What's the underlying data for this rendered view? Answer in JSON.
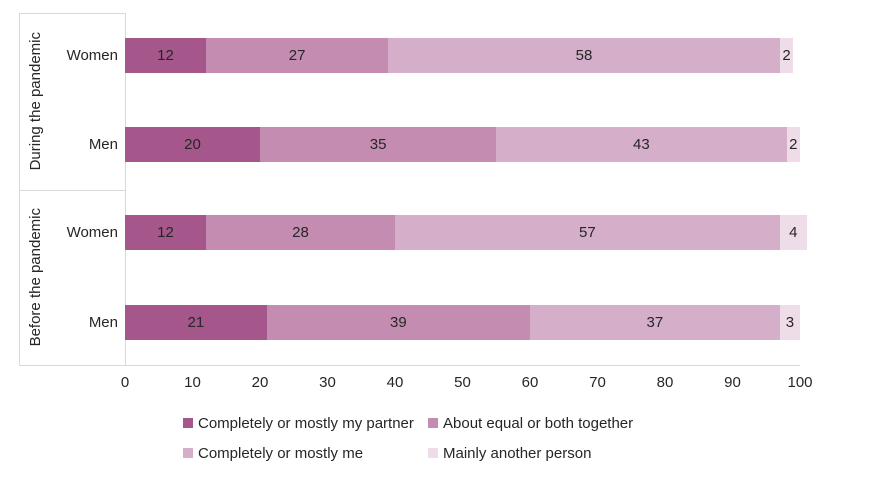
{
  "chart_data": {
    "type": "bar",
    "stacked": true,
    "orientation": "horizontal",
    "title": "",
    "xlabel": "",
    "ylabel": "",
    "xlim": [
      0,
      100
    ],
    "x_ticks": [
      0,
      10,
      20,
      30,
      40,
      50,
      60,
      70,
      80,
      90,
      100
    ],
    "grid": false,
    "legend_position": "bottom",
    "series": [
      {
        "name": "Completely or mostly my partner",
        "color": "#a5578b"
      },
      {
        "name": "About equal or both together",
        "color": "#c58cb1"
      },
      {
        "name": "Completely or mostly me",
        "color": "#d5afca"
      },
      {
        "name": "Mainly another person",
        "color": "#eedce9"
      }
    ],
    "groups": [
      {
        "label": "During the pandemic",
        "rows": [
          {
            "category": "Women",
            "values": [
              12,
              27,
              58,
              2
            ]
          },
          {
            "category": "Men",
            "values": [
              20,
              35,
              43,
              2
            ]
          }
        ]
      },
      {
        "label": "Before the pandemic",
        "rows": [
          {
            "category": "Women",
            "values": [
              12,
              28,
              57,
              4
            ]
          },
          {
            "category": "Men",
            "values": [
              21,
              39,
              37,
              3
            ]
          }
        ]
      }
    ],
    "colors": {
      "axis_line": "#d9d9d9",
      "text": "#262626"
    }
  }
}
